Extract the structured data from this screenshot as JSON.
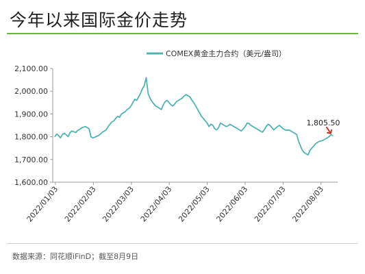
{
  "title": "今年以来国际金价走势",
  "source": "数据来源：同花顺iFinD；截至8月9日",
  "colors": {
    "line": "#4fb3b0",
    "accent_rule": "#6db443",
    "callout_arrow": "#d0312d"
  },
  "chart_data": {
    "type": "line",
    "title": "",
    "xlabel": "",
    "ylabel": "",
    "ylim": [
      1600,
      2100
    ],
    "yticks": [
      1600,
      1700,
      1800,
      1900,
      2000,
      2100
    ],
    "ytick_labels": [
      "1,600.00",
      "1,700.00",
      "1,800.00",
      "1,900.00",
      "2,000.00",
      "2,100.00"
    ],
    "xtick_labels": [
      "2022/01/03",
      "2022/02/03",
      "2022/03/03",
      "2022/04/03",
      "2022/05/03",
      "2022/06/03",
      "2022/07/03",
      "2022/08/03"
    ],
    "grid": false,
    "legend_position": "top",
    "annotation": {
      "text": "1,805.50",
      "x_index": 146
    },
    "series": [
      {
        "name": "COMEX黄金主力合约（美元/盎司）",
        "values": [
          1800,
          1812,
          1805,
          1795,
          1810,
          1815,
          1808,
          1800,
          1818,
          1825,
          1822,
          1818,
          1828,
          1832,
          1838,
          1842,
          1845,
          1840,
          1835,
          1800,
          1795,
          1798,
          1802,
          1805,
          1812,
          1820,
          1825,
          1830,
          1845,
          1855,
          1865,
          1870,
          1880,
          1890,
          1885,
          1900,
          1905,
          1910,
          1920,
          1925,
          1935,
          1950,
          1965,
          1960,
          1975,
          1990,
          2010,
          2025,
          2060,
          1990,
          1970,
          1955,
          1945,
          1935,
          1930,
          1925,
          1920,
          1940,
          1955,
          1960,
          1950,
          1940,
          1935,
          1945,
          1955,
          1960,
          1965,
          1970,
          1980,
          1985,
          1980,
          1975,
          1960,
          1950,
          1935,
          1920,
          1905,
          1890,
          1880,
          1870,
          1860,
          1845,
          1855,
          1850,
          1835,
          1830,
          1840,
          1860,
          1855,
          1850,
          1845,
          1848,
          1855,
          1850,
          1845,
          1840,
          1835,
          1830,
          1825,
          1835,
          1845,
          1860,
          1858,
          1850,
          1845,
          1840,
          1835,
          1830,
          1825,
          1820,
          1830,
          1845,
          1855,
          1850,
          1840,
          1830,
          1838,
          1845,
          1850,
          1842,
          1835,
          1830,
          1828,
          1830,
          1825,
          1820,
          1815,
          1810,
          1780,
          1760,
          1740,
          1730,
          1725,
          1720,
          1740,
          1750,
          1760,
          1770,
          1775,
          1780,
          1782,
          1785,
          1790,
          1795,
          1800,
          1808,
          1805.5
        ]
      }
    ]
  }
}
